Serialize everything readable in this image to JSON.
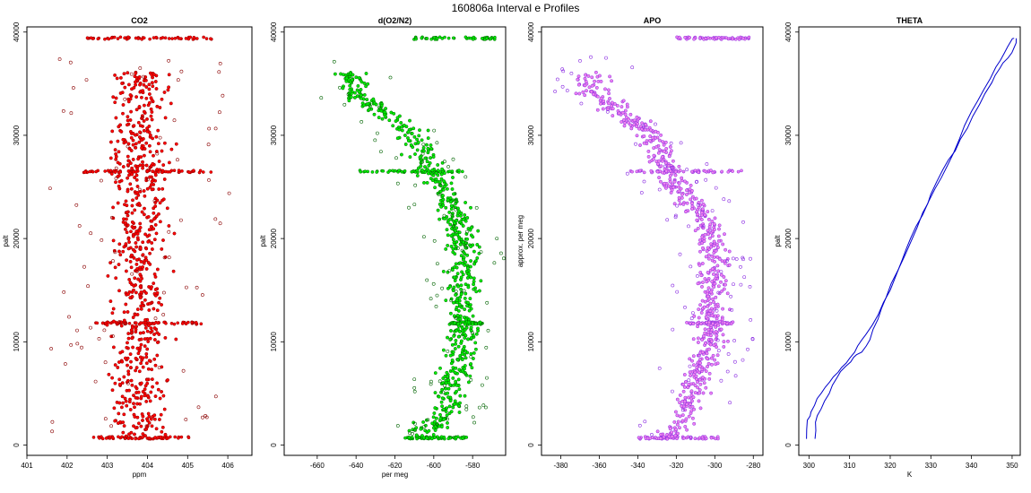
{
  "page_title": "160806a   Interval e Profiles",
  "chart_data": [
    {
      "type": "scatter",
      "title": "CO2",
      "xlabel": "ppm",
      "ylabel": "palt",
      "xlim": [
        401,
        406.6
      ],
      "ylim": [
        -1000,
        40500
      ],
      "xticks": [
        401,
        402,
        403,
        404,
        405,
        406
      ],
      "yticks": [
        0,
        10000,
        20000,
        30000,
        40000
      ],
      "colors": {
        "points": "#ff0000",
        "edge": "#8b0000"
      },
      "series": [
        {
          "center": [
            [
              0,
              403.8
            ],
            [
              10000,
              403.8
            ],
            [
              20000,
              403.8
            ],
            [
              30000,
              403.8
            ],
            [
              40000,
              403.8
            ]
          ],
          "spread": 0.6,
          "outlier_spread": 1.4
        }
      ],
      "bands": [
        {
          "y": 700,
          "x": [
            402.6,
            405.3
          ]
        },
        {
          "y": 11800,
          "x": [
            402.7,
            405.4
          ]
        },
        {
          "y": 26500,
          "x": [
            402.4,
            405.7
          ]
        },
        {
          "y": 39400,
          "x": [
            402.5,
            405.6
          ]
        }
      ]
    },
    {
      "type": "scatter",
      "title": "d(O2/N2)",
      "xlabel": "per meg",
      "ylabel": "palt",
      "xlim": [
        -677,
        -563
      ],
      "ylim": [
        -1000,
        40500
      ],
      "xticks": [
        -660,
        -640,
        -620,
        -600,
        -580
      ],
      "yticks": [
        0,
        10000,
        20000,
        30000,
        40000
      ],
      "colors": {
        "points": "#00ee00",
        "edge": "#006400"
      },
      "series": [
        {
          "center": [
            [
              1000,
              -607
            ],
            [
              3000,
              -595
            ],
            [
              6000,
              -590
            ],
            [
              10000,
              -585
            ],
            [
              14000,
              -586
            ],
            [
              18000,
              -584
            ],
            [
              22000,
              -588
            ],
            [
              25500,
              -598
            ],
            [
              27500,
              -605
            ],
            [
              30500,
              -612
            ],
            [
              34000,
              -640
            ],
            [
              36000,
              -642
            ]
          ],
          "spread": 7,
          "outlier_spread": 14
        }
      ],
      "bands": [
        {
          "y": 700,
          "x": [
            -617,
            -583
          ]
        },
        {
          "y": 11800,
          "x": [
            -592,
            -575
          ]
        },
        {
          "y": 26500,
          "x": [
            -638,
            -585
          ]
        },
        {
          "y": 39400,
          "x": [
            -612,
            -567
          ]
        }
      ]
    },
    {
      "type": "scatter",
      "title": "APO",
      "xlabel": "",
      "ylabel": "approx. per meg",
      "xlim": [
        -390,
        -275
      ],
      "ylim": [
        -1000,
        40500
      ],
      "xticks": [
        -380,
        -360,
        -340,
        -320,
        -300,
        -280
      ],
      "yticks": [
        0,
        10000,
        20000,
        30000,
        40000
      ],
      "colors": {
        "points": "#ee82ee",
        "edge": "#8a2be2"
      },
      "series": [
        {
          "center": [
            [
              1000,
              -325
            ],
            [
              3000,
              -316
            ],
            [
              6000,
              -310
            ],
            [
              10000,
              -302
            ],
            [
              14000,
              -302
            ],
            [
              18000,
              -300
            ],
            [
              22000,
              -305
            ],
            [
              25500,
              -322
            ],
            [
              27500,
              -325
            ],
            [
              30500,
              -335
            ],
            [
              34000,
              -362
            ],
            [
              36000,
              -365
            ]
          ],
          "spread": 7,
          "outlier_spread": 14
        }
      ],
      "bands": [
        {
          "y": 700,
          "x": [
            -340,
            -298
          ]
        },
        {
          "y": 11800,
          "x": [
            -315,
            -290
          ]
        },
        {
          "y": 26500,
          "x": [
            -345,
            -285
          ]
        },
        {
          "y": 39400,
          "x": [
            -320,
            -282
          ]
        }
      ]
    },
    {
      "type": "line",
      "title": "THETA",
      "xlabel": "K",
      "ylabel": "palt",
      "xlim": [
        297.5,
        352
      ],
      "ylim": [
        -1000,
        40500
      ],
      "xticks": [
        300,
        310,
        320,
        330,
        340,
        350
      ],
      "yticks": [
        0,
        10000,
        20000,
        30000,
        40000
      ],
      "colors": {
        "line": "#0000cd"
      },
      "series": [
        {
          "x": [
            299.4,
            299.6,
            300.5,
            302,
            304,
            306,
            308,
            310,
            312,
            314,
            317,
            320,
            323,
            325,
            328,
            331,
            334,
            337,
            340,
            343,
            346,
            348,
            350,
            350.5
          ],
          "y": [
            600,
            2400,
            3200,
            4500,
            5600,
            6600,
            7500,
            8400,
            9600,
            10700,
            12600,
            15000,
            18000,
            20000,
            22300,
            24800,
            27000,
            29600,
            32300,
            34400,
            36600,
            37900,
            39300,
            39400
          ]
        },
        {
          "x": [
            301.5,
            301.6,
            303,
            305,
            307,
            309,
            311,
            313,
            315,
            317,
            319,
            322,
            325,
            328,
            330,
            333,
            336,
            339,
            342,
            345,
            347,
            349,
            350.5,
            351
          ],
          "y": [
            600,
            2200,
            3500,
            5000,
            6600,
            7600,
            8500,
            9000,
            10200,
            12200,
            14300,
            17000,
            19600,
            22500,
            24300,
            26700,
            28500,
            30700,
            33000,
            35100,
            36500,
            37500,
            38500,
            39400
          ]
        }
      ]
    }
  ]
}
